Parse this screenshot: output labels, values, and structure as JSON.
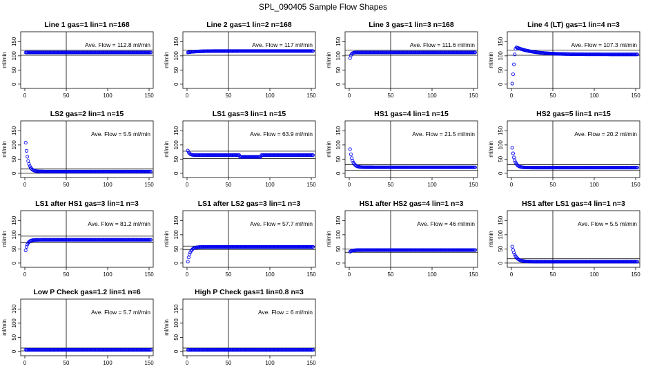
{
  "figure": {
    "title": "SPL_090405  Sample Flow Shapes"
  },
  "chart_data": [
    {
      "type": "scatter",
      "title": "Line 1 gas=1 lin=1 n=168",
      "ylabel": "ml/min",
      "xlim": [
        0,
        150
      ],
      "ylim": [
        -15,
        185
      ],
      "xticks": [
        0,
        50,
        100,
        150
      ],
      "yticks": [
        0,
        50,
        100,
        150
      ],
      "marker_x": 50,
      "hlines": [
        102,
        120
      ],
      "annotation": "Ave. Flow =  112.8  ml/min",
      "shape": {
        "start": 112,
        "plateau": 112,
        "decay": 5,
        "min_x": 0
      }
    },
    {
      "type": "scatter",
      "title": "Line 2 gas=1 lin=2 n=168",
      "ylabel": "ml/min",
      "xlim": [
        0,
        150
      ],
      "ylim": [
        -15,
        185
      ],
      "xticks": [
        0,
        50,
        100,
        150
      ],
      "yticks": [
        0,
        50,
        100,
        150
      ],
      "marker_x": 50,
      "hlines": [
        102,
        120
      ],
      "annotation": "Ave. Flow =  117  ml/min",
      "shape": {
        "start": 112,
        "plateau": 117,
        "decay": 10,
        "min_x": 0
      }
    },
    {
      "type": "scatter",
      "title": "Line 3 gas=1 lin=3 n=168",
      "ylabel": "ml/min",
      "xlim": [
        0,
        150
      ],
      "ylim": [
        -15,
        185
      ],
      "xticks": [
        0,
        50,
        100,
        150
      ],
      "yticks": [
        0,
        50,
        100,
        150
      ],
      "marker_x": 50,
      "hlines": [
        102,
        120
      ],
      "annotation": "Ave. Flow =  111.6  ml/min",
      "shape": {
        "start": 92,
        "plateau": 112,
        "decay": 1.5,
        "min_x": 0
      }
    },
    {
      "type": "scatter",
      "title": "Line 4 (LT) gas=1 lin=4 n=3",
      "ylabel": "ml/min",
      "xlim": [
        0,
        150
      ],
      "ylim": [
        -15,
        185
      ],
      "xticks": [
        0,
        50,
        100,
        150
      ],
      "yticks": [
        0,
        50,
        100,
        150
      ],
      "marker_x": 50,
      "hlines": [
        102,
        120
      ],
      "annotation": "Ave. Flow =  107.3  ml/min",
      "shape": {
        "start": 2,
        "plateau": 105,
        "decay": 20,
        "min_x": 0,
        "overshoot": 130,
        "rise": [
          2,
          35,
          70,
          105,
          125
        ]
      }
    },
    {
      "type": "scatter",
      "title": "LS2 gas=2 lin=1 n=15",
      "ylabel": "ml/min",
      "xlim": [
        0,
        150
      ],
      "ylim": [
        -15,
        185
      ],
      "xticks": [
        0,
        50,
        100,
        150
      ],
      "yticks": [
        0,
        50,
        100,
        150
      ],
      "marker_x": 50,
      "hlines": [
        0,
        15
      ],
      "annotation": "Ave. Flow =  5.5  ml/min",
      "shape": {
        "start": 108,
        "plateau": 6,
        "decay": 3,
        "min_x": 0
      }
    },
    {
      "type": "scatter",
      "title": "LS1 gas=3 lin=1 n=15",
      "ylabel": "ml/min",
      "xlim": [
        0,
        150
      ],
      "ylim": [
        -15,
        185
      ],
      "xticks": [
        0,
        50,
        100,
        150
      ],
      "yticks": [
        0,
        50,
        100,
        150
      ],
      "marker_x": 50,
      "hlines": [
        52,
        78
      ],
      "annotation": "Ave. Flow =  63.9  ml/min",
      "shape": {
        "start": 80,
        "plateau": 64,
        "decay": 2,
        "min_x": 0,
        "dip": [
          63,
          88,
          58
        ]
      }
    },
    {
      "type": "scatter",
      "title": "HS1 gas=4 lin=1 n=15",
      "ylabel": "ml/min",
      "xlim": [
        0,
        150
      ],
      "ylim": [
        -15,
        185
      ],
      "xticks": [
        0,
        50,
        100,
        150
      ],
      "yticks": [
        0,
        50,
        100,
        150
      ],
      "marker_x": 50,
      "hlines": [
        10,
        30
      ],
      "annotation": "Ave. Flow =  21.5  ml/min",
      "shape": {
        "start": 85,
        "plateau": 21,
        "decay": 3,
        "min_x": 0
      }
    },
    {
      "type": "scatter",
      "title": "HS2 gas=5 lin=1 n=15",
      "ylabel": "ml/min",
      "xlim": [
        0,
        150
      ],
      "ylim": [
        -15,
        185
      ],
      "xticks": [
        0,
        50,
        100,
        150
      ],
      "yticks": [
        0,
        50,
        100,
        150
      ],
      "marker_x": 50,
      "hlines": [
        10,
        30
      ],
      "annotation": "Ave. Flow =  20.2  ml/min",
      "shape": {
        "start": 90,
        "plateau": 20,
        "decay": 3,
        "min_x": 0
      }
    },
    {
      "type": "scatter",
      "title": "LS1 after HS1 gas=3 lin=1 n=3",
      "ylabel": "ml/min",
      "xlim": [
        0,
        150
      ],
      "ylim": [
        -15,
        185
      ],
      "xticks": [
        0,
        50,
        100,
        150
      ],
      "yticks": [
        0,
        50,
        100,
        150
      ],
      "marker_x": 50,
      "hlines": [
        72,
        95
      ],
      "annotation": "Ave. Flow =  81.2  ml/min",
      "shape": {
        "start": 45,
        "plateau": 82,
        "decay": 2.5,
        "min_x": 0
      }
    },
    {
      "type": "scatter",
      "title": "LS1 after LS2 gas=3 lin=1 n=3",
      "ylabel": "ml/min",
      "xlim": [
        0,
        150
      ],
      "ylim": [
        -15,
        185
      ],
      "xticks": [
        0,
        50,
        100,
        150
      ],
      "yticks": [
        0,
        50,
        100,
        150
      ],
      "marker_x": 50,
      "hlines": [
        48,
        60
      ],
      "annotation": "Ave. Flow =  57.7  ml/min",
      "shape": {
        "start": 5,
        "plateau": 57,
        "decay": 3,
        "min_x": 0
      }
    },
    {
      "type": "scatter",
      "title": "HS1 after HS2 gas=4 lin=1 n=3",
      "ylabel": "ml/min",
      "xlim": [
        0,
        150
      ],
      "ylim": [
        -15,
        185
      ],
      "xticks": [
        0,
        50,
        100,
        150
      ],
      "yticks": [
        0,
        50,
        100,
        150
      ],
      "marker_x": 50,
      "hlines": [
        38,
        50
      ],
      "annotation": "Ave. Flow =  46  ml/min",
      "shape": {
        "start": 40,
        "plateau": 46,
        "decay": 3,
        "min_x": 0
      }
    },
    {
      "type": "scatter",
      "title": "HS1 after LS1 gas=4 lin=1 n=3",
      "ylabel": "ml/min",
      "xlim": [
        0,
        150
      ],
      "ylim": [
        -15,
        185
      ],
      "xticks": [
        0,
        50,
        100,
        150
      ],
      "yticks": [
        0,
        50,
        100,
        150
      ],
      "marker_x": 50,
      "hlines": [
        0,
        15
      ],
      "annotation": "Ave. Flow =  5.5  ml/min",
      "shape": {
        "start": 58,
        "plateau": 5,
        "decay": 4,
        "min_x": 0
      }
    },
    {
      "type": "scatter",
      "title": "Low P Check gas=1.2 lin=1 n=6",
      "ylabel": "ml/min",
      "xlim": [
        0,
        150
      ],
      "ylim": [
        -15,
        185
      ],
      "xticks": [
        0,
        50,
        100,
        150
      ],
      "yticks": [
        0,
        50,
        100,
        150
      ],
      "marker_x": 50,
      "hlines": [
        2,
        12
      ],
      "annotation": "Ave. Flow =  5.7  ml/min",
      "shape": {
        "start": 6,
        "plateau": 6,
        "decay": 3,
        "min_x": 0
      }
    },
    {
      "type": "scatter",
      "title": "High P Check gas=1 lin=0.8 n=3",
      "ylabel": "ml/min",
      "xlim": [
        0,
        150
      ],
      "ylim": [
        -15,
        185
      ],
      "xticks": [
        0,
        50,
        100,
        150
      ],
      "yticks": [
        0,
        50,
        100,
        150
      ],
      "marker_x": 50,
      "hlines": [
        2,
        12
      ],
      "annotation": "Ave. Flow =  6  ml/min",
      "shape": {
        "start": 6,
        "plateau": 6,
        "decay": 3,
        "min_x": 0
      }
    }
  ],
  "colors": {
    "points": "#0000ee",
    "axes": "#000000",
    "background": "#ffffff"
  }
}
